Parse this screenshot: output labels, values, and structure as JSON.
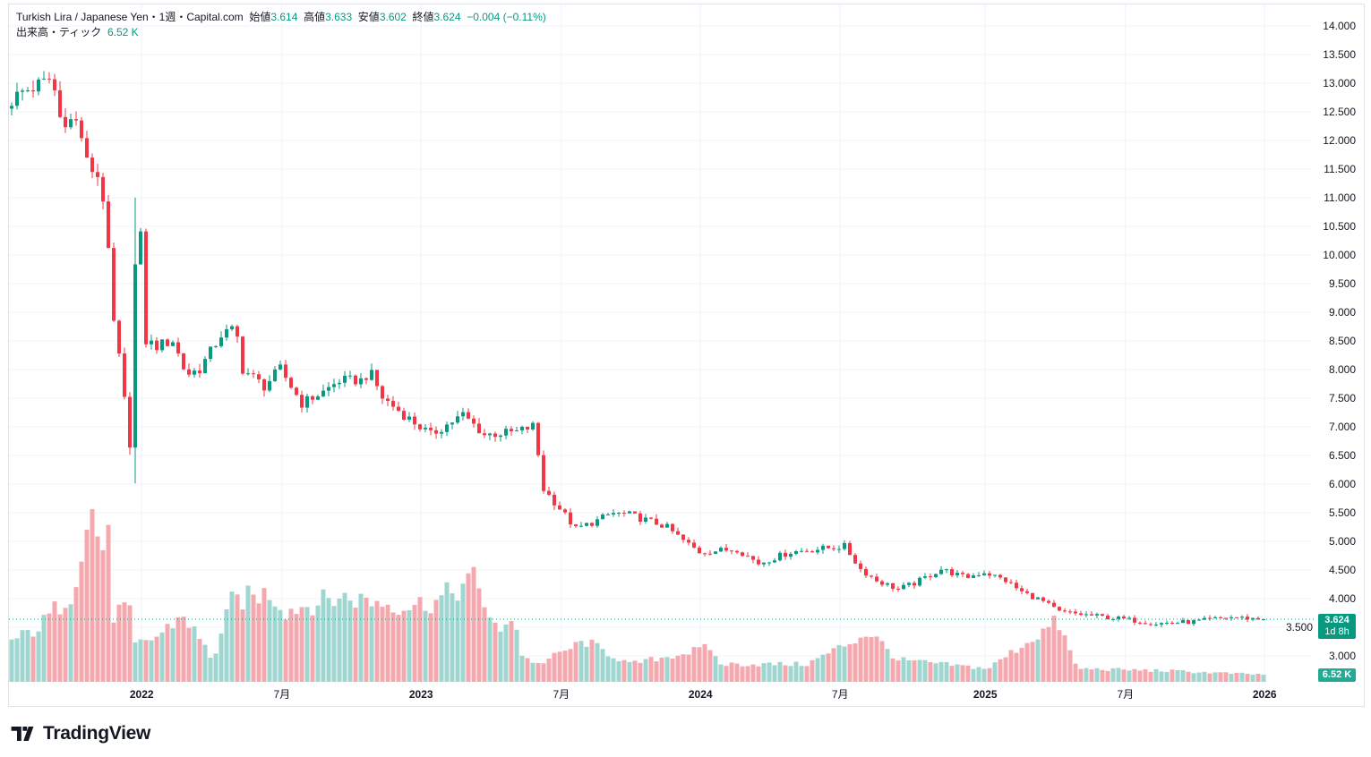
{
  "header": {
    "symbol": "Turkish Lira / Japanese Yen・1週・Capital.com",
    "open_label": "始値",
    "open": "3.614",
    "high_label": "高値",
    "high": "3.633",
    "low_label": "安値",
    "low": "3.602",
    "close_label": "終値",
    "close": "3.624",
    "change": "−0.004 (−0.11%)",
    "volume_label": "出来高・ティック",
    "volume": "6.52 K"
  },
  "price_tag": {
    "price": "3.624",
    "countdown": "1d 8h"
  },
  "volume_tag": "6.52 K",
  "logo": "TradingView",
  "colors": {
    "up": "#089981",
    "down": "#f23645",
    "vol_up": "#9fd6d0",
    "vol_down": "#f5a8ad",
    "grid": "#f0f3fa"
  },
  "chart_data": {
    "type": "candlestick",
    "interval": "1 week",
    "ylim": [
      2.6,
      14.2
    ],
    "y_ticks": [
      "14.000",
      "13.500",
      "13.000",
      "12.500",
      "12.000",
      "11.500",
      "11.000",
      "10.500",
      "10.000",
      "9.500",
      "9.000",
      "8.500",
      "8.000",
      "7.500",
      "7.000",
      "6.500",
      "6.000",
      "5.500",
      "5.000",
      "4.500",
      "4.000",
      "3.500",
      "3.000"
    ],
    "x_ticks": [
      {
        "label": "2022",
        "week": 24.7
      },
      {
        "label": "7月",
        "week": 50.8
      },
      {
        "label": "2023",
        "week": 76.7
      },
      {
        "label": "7月",
        "week": 102.8
      },
      {
        "label": "2024",
        "week": 128.7
      },
      {
        "label": "7月",
        "week": 154.7
      },
      {
        "label": "2025",
        "week": 181.7
      },
      {
        "label": "7月",
        "week": 207.8
      },
      {
        "label": "2026",
        "week": 233.7
      }
    ],
    "weeks": 234,
    "close_path": [
      [
        0,
        12.7
      ],
      [
        2,
        12.85
      ],
      [
        6,
        13.0
      ],
      [
        7.5,
        13.1
      ],
      [
        9,
        12.4
      ],
      [
        12.5,
        12.3
      ],
      [
        14,
        11.6
      ],
      [
        16.7,
        11.3
      ],
      [
        18,
        10.0
      ],
      [
        19,
        8.8
      ],
      [
        20,
        8.2
      ],
      [
        22,
        6.7
      ],
      [
        23,
        9.8
      ],
      [
        24,
        10.3
      ],
      [
        24.7,
        8.5
      ],
      [
        27,
        8.4
      ],
      [
        30,
        8.5
      ],
      [
        32.5,
        7.9
      ],
      [
        35,
        8.0
      ],
      [
        39,
        8.6
      ],
      [
        41.7,
        8.7
      ],
      [
        43,
        8.0
      ],
      [
        47,
        7.7
      ],
      [
        50,
        8.0
      ],
      [
        54,
        7.4
      ],
      [
        58,
        7.6
      ],
      [
        61,
        7.8
      ],
      [
        65,
        7.8
      ],
      [
        66.7,
        7.95
      ],
      [
        69,
        7.5
      ],
      [
        73,
        7.2
      ],
      [
        78,
        6.85
      ],
      [
        84,
        7.2
      ],
      [
        88,
        6.85
      ],
      [
        94,
        6.9
      ],
      [
        97,
        7.0
      ],
      [
        98,
        6.5
      ],
      [
        99,
        5.9
      ],
      [
        101.7,
        5.6
      ],
      [
        105,
        5.2
      ],
      [
        109,
        5.35
      ],
      [
        111.7,
        5.48
      ],
      [
        115,
        5.45
      ],
      [
        121.7,
        5.25
      ],
      [
        125,
        5.0
      ],
      [
        128,
        4.8
      ],
      [
        135,
        4.85
      ],
      [
        139,
        4.6
      ],
      [
        145,
        4.8
      ],
      [
        155,
        4.9
      ],
      [
        158,
        4.5
      ],
      [
        161,
        4.3
      ],
      [
        165,
        4.15
      ],
      [
        168,
        4.25
      ],
      [
        173,
        4.5
      ],
      [
        177.5,
        4.35
      ],
      [
        181,
        4.45
      ],
      [
        185,
        4.3
      ],
      [
        188,
        4.1
      ],
      [
        191.7,
        3.95
      ],
      [
        195,
        3.75
      ],
      [
        200,
        3.7
      ],
      [
        207.5,
        3.62
      ],
      [
        213,
        3.55
      ],
      [
        220,
        3.58
      ],
      [
        226.7,
        3.66
      ],
      [
        233,
        3.624
      ]
    ],
    "volume_path_k": [
      [
        0,
        37
      ],
      [
        5,
        49
      ],
      [
        11,
        81
      ],
      [
        15,
        155
      ],
      [
        16.7,
        122
      ],
      [
        18,
        126
      ],
      [
        19,
        61
      ],
      [
        21.7,
        69
      ],
      [
        23,
        33
      ],
      [
        27,
        41
      ],
      [
        32,
        61
      ],
      [
        37.5,
        20
      ],
      [
        41,
        73
      ],
      [
        48,
        81
      ],
      [
        51,
        65
      ],
      [
        61,
        77
      ],
      [
        68,
        73
      ],
      [
        73,
        69
      ],
      [
        79,
        73
      ],
      [
        86,
        93
      ],
      [
        91,
        41
      ],
      [
        93.5,
        65
      ],
      [
        95,
        24
      ],
      [
        98,
        16
      ],
      [
        106.7,
        37
      ],
      [
        115,
        16
      ],
      [
        130,
        31
      ],
      [
        131.7,
        16
      ],
      [
        148,
        16
      ],
      [
        159.7,
        45
      ],
      [
        165,
        20
      ],
      [
        181.7,
        12
      ],
      [
        194.7,
        55
      ],
      [
        198.3,
        12
      ],
      [
        215,
        10
      ],
      [
        233,
        6.52
      ]
    ],
    "last_candle": {
      "open": 3.614,
      "high": 3.633,
      "low": 3.602,
      "close": 3.624,
      "volume_k": 6.52
    }
  }
}
